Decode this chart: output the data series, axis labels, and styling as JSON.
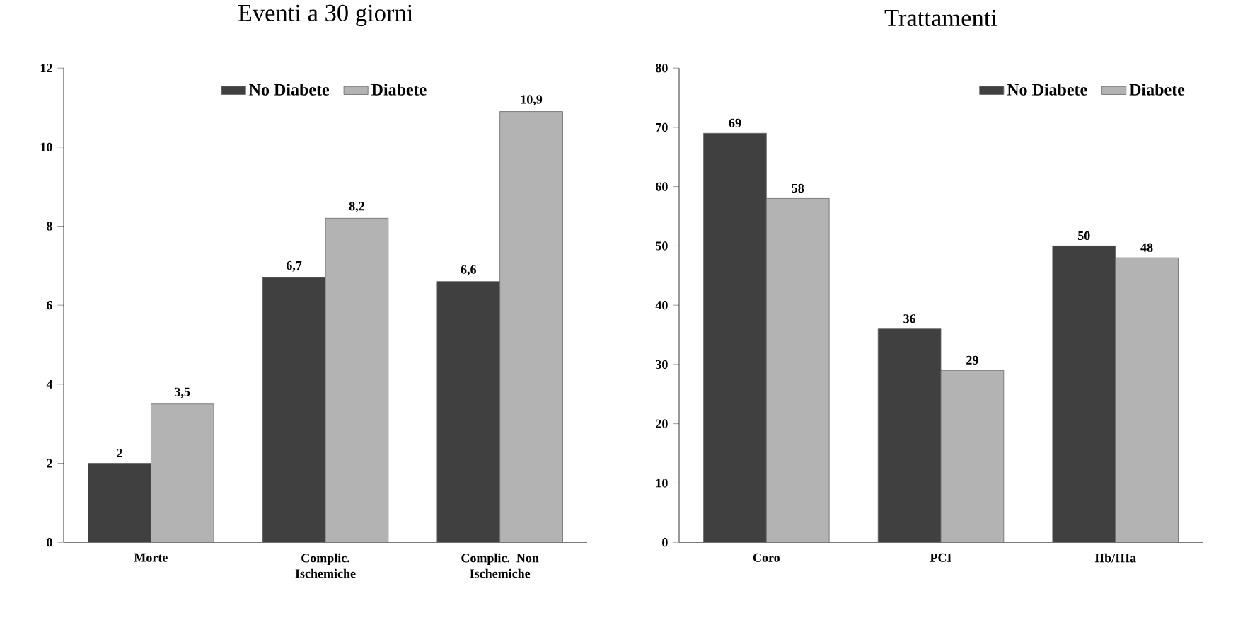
{
  "chart_data": [
    {
      "type": "bar",
      "title": "Eventi a 30 giorni",
      "categories": [
        "Morte",
        "Complic. Ischemiche",
        "Complic. Non Ischemiche"
      ],
      "series": [
        {
          "name": "No Diabete",
          "color": "#404040",
          "values": [
            2,
            6.7,
            6.6
          ],
          "value_labels": [
            "2",
            "6,7",
            "6,6"
          ]
        },
        {
          "name": "Diabete",
          "color": "#b3b3b3",
          "values": [
            3.5,
            8.2,
            10.9
          ],
          "value_labels": [
            "3,5",
            "8,2",
            "10,9"
          ]
        }
      ],
      "ylim": [
        0,
        12
      ],
      "yticks": [
        0,
        2,
        4,
        6,
        8,
        10,
        12
      ],
      "legend": "top",
      "grid": false
    },
    {
      "type": "bar",
      "title": "Trattamenti",
      "categories": [
        "Coro",
        "PCI",
        "IIb/IIIa"
      ],
      "series": [
        {
          "name": "No Diabete",
          "color": "#404040",
          "values": [
            69,
            36,
            50
          ]
        },
        {
          "name": "Diabete",
          "color": "#b3b3b3",
          "values": [
            58,
            29,
            48
          ]
        }
      ],
      "ylim": [
        0,
        80
      ],
      "yticks": [
        0,
        10,
        20,
        30,
        40,
        50,
        60,
        70,
        80
      ],
      "data_labels": true,
      "legend": "top right",
      "grid": false
    }
  ]
}
